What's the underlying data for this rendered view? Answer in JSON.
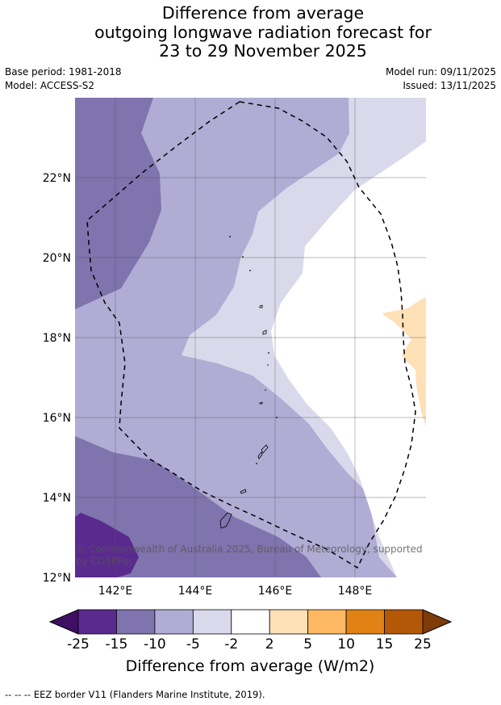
{
  "header": {
    "title_lines": [
      "Difference from average",
      "outgoing longwave radiation forecast for",
      "23 to 29 November 2025"
    ],
    "base_period": "Base period: 1981-2018",
    "model": "Model: ACCESS-S2",
    "model_run": "Model run: 09/11/2025",
    "issued": "Issued: 13/11/2025"
  },
  "map": {
    "longitude_labels": [
      "142°E",
      "144°E",
      "146°E",
      "148°E"
    ],
    "latitude_labels": [
      "22°N",
      "20°N",
      "18°N",
      "16°N",
      "14°N",
      "12°N"
    ],
    "credit_line1": "© Commonwealth of Australia 2025, Bureau of Meteorology, supported",
    "credit_line2": "by COSPPac"
  },
  "legend": {
    "tick_labels": [
      "-25",
      "-15",
      "-10",
      "-5",
      "-2",
      "2",
      "5",
      "10",
      "15",
      "25"
    ],
    "title": "Difference from average (W/m2)",
    "colors": [
      "#3f0f63",
      "#5a2a8e",
      "#7f74ad",
      "#b0acd4",
      "#d9d9eb",
      "#ffffff",
      "#fee0b6",
      "#fdb863",
      "#e08214",
      "#b35806",
      "#7f3b08"
    ]
  },
  "footer": {
    "eez_note": "--  --  -- EEZ border V11 (Flanders Marine Institute, 2019)."
  }
}
